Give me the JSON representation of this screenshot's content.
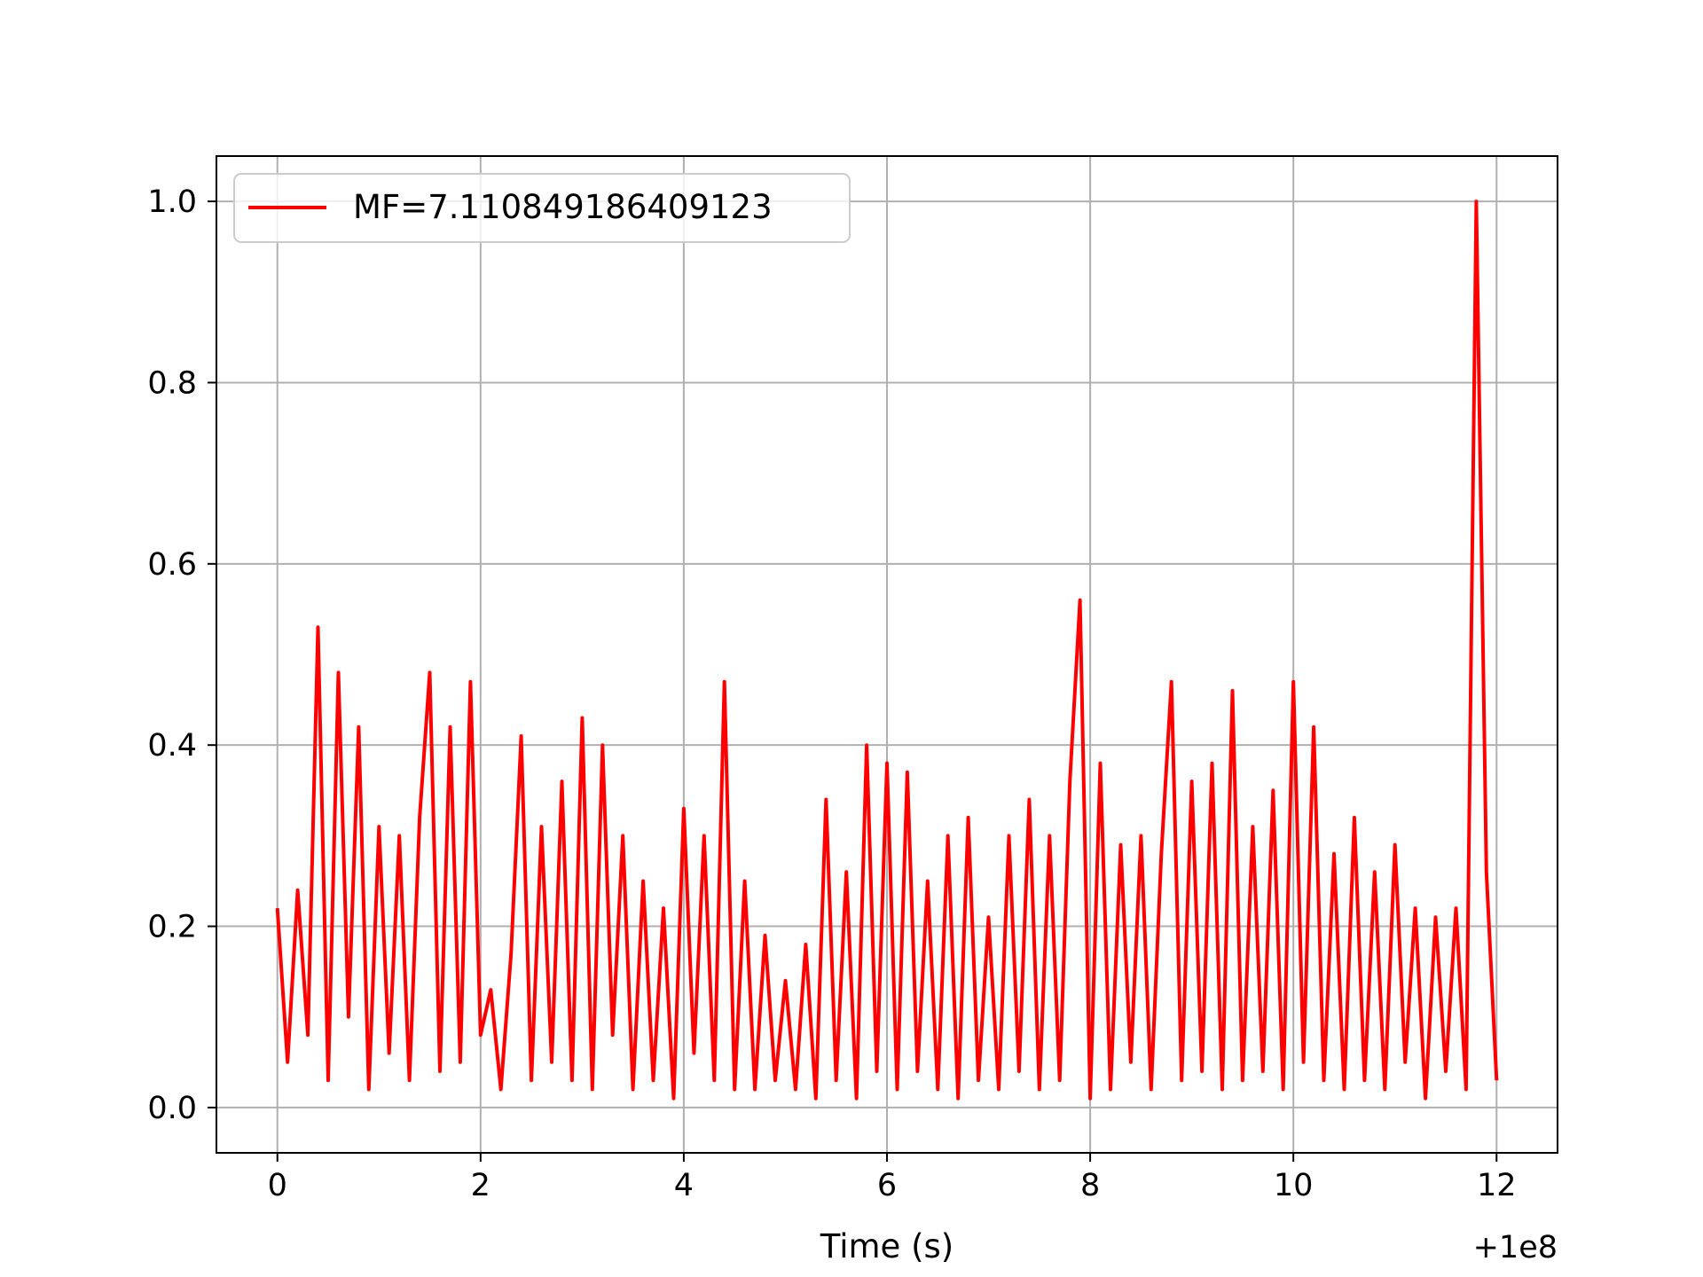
{
  "chart_data": {
    "type": "line",
    "title": "",
    "xlabel": "Time (s)",
    "ylabel": "",
    "x_offset_label": "+1e8",
    "xlim": [
      100000000.0,
      100000012.0
    ],
    "ylim": [
      0.0,
      1.0
    ],
    "x_ticks": [
      0,
      2,
      4,
      6,
      8,
      10,
      12
    ],
    "x_tick_labels": [
      "0",
      "2",
      "4",
      "6",
      "8",
      "10",
      "12"
    ],
    "y_ticks": [
      0.0,
      0.2,
      0.4,
      0.6,
      0.8,
      1.0
    ],
    "y_tick_labels": [
      "0.0",
      "0.2",
      "0.4",
      "0.6",
      "0.8",
      "1.0"
    ],
    "grid": true,
    "legend_position": "top-left",
    "series": [
      {
        "name": "MF=7.110849186409123",
        "color": "#ff0000",
        "x": [
          100000000.0,
          100000000.1,
          100000000.2,
          100000000.3,
          100000000.4,
          100000000.5,
          100000000.6,
          100000000.7,
          100000000.8,
          100000000.9,
          100000001.0,
          100000001.1,
          100000001.2,
          100000001.3,
          100000001.4,
          100000001.5,
          100000001.6,
          100000001.7,
          100000001.8,
          100000001.9,
          100000002.0,
          100000002.1,
          100000002.2,
          100000002.3,
          100000002.4,
          100000002.5,
          100000002.6,
          100000002.7,
          100000002.8,
          100000002.9,
          100000003.0,
          100000003.1,
          100000003.2,
          100000003.3,
          100000003.4,
          100000003.5,
          100000003.6,
          100000003.7,
          100000003.8,
          100000003.9,
          100000004.0,
          100000004.1,
          100000004.2,
          100000004.3,
          100000004.4,
          100000004.5,
          100000004.6,
          100000004.7,
          100000004.8,
          100000004.9,
          100000005.0,
          100000005.1,
          100000005.2,
          100000005.3,
          100000005.4,
          100000005.5,
          100000005.6,
          100000005.7,
          100000005.8,
          100000005.9,
          100000006.0,
          100000006.1,
          100000006.2,
          100000006.3,
          100000006.4,
          100000006.5,
          100000006.6,
          100000006.7,
          100000006.8,
          100000006.9,
          100000007.0,
          100000007.1,
          100000007.2,
          100000007.3,
          100000007.4,
          100000007.5,
          100000007.6,
          100000007.7,
          100000007.8,
          100000007.9,
          100000008.0,
          100000008.1,
          100000008.2,
          100000008.3,
          100000008.4,
          100000008.5,
          100000008.6,
          100000008.7,
          100000008.8,
          100000008.9,
          100000009.0,
          100000009.1,
          100000009.2,
          100000009.3,
          100000009.4,
          100000009.5,
          100000009.6,
          100000009.7,
          100000009.8,
          100000009.9,
          100000010.0,
          100000010.1,
          100000010.2,
          100000010.3,
          100000010.4,
          100000010.5,
          100000010.6,
          100000010.7,
          100000010.8,
          100000010.9,
          100000011.0,
          100000011.1,
          100000011.2,
          100000011.3,
          100000011.4,
          100000011.5,
          100000011.6,
          100000011.7,
          100000011.8,
          100000011.9,
          100000012.0
        ],
        "y": [
          0.22,
          0.05,
          0.24,
          0.08,
          0.53,
          0.03,
          0.48,
          0.1,
          0.42,
          0.02,
          0.31,
          0.06,
          0.3,
          0.03,
          0.32,
          0.48,
          0.04,
          0.42,
          0.05,
          0.47,
          0.08,
          0.13,
          0.02,
          0.17,
          0.41,
          0.03,
          0.31,
          0.05,
          0.36,
          0.03,
          0.43,
          0.02,
          0.4,
          0.08,
          0.3,
          0.02,
          0.25,
          0.03,
          0.22,
          0.01,
          0.33,
          0.06,
          0.3,
          0.03,
          0.47,
          0.02,
          0.25,
          0.02,
          0.19,
          0.03,
          0.14,
          0.02,
          0.18,
          0.01,
          0.34,
          0.03,
          0.26,
          0.01,
          0.4,
          0.04,
          0.38,
          0.02,
          0.37,
          0.04,
          0.25,
          0.02,
          0.3,
          0.01,
          0.32,
          0.03,
          0.21,
          0.02,
          0.3,
          0.04,
          0.34,
          0.02,
          0.3,
          0.03,
          0.36,
          0.56,
          0.01,
          0.38,
          0.02,
          0.29,
          0.05,
          0.3,
          0.02,
          0.28,
          0.47,
          0.03,
          0.36,
          0.04,
          0.38,
          0.02,
          0.46,
          0.03,
          0.31,
          0.04,
          0.35,
          0.02,
          0.47,
          0.05,
          0.42,
          0.03,
          0.28,
          0.02,
          0.32,
          0.03,
          0.26,
          0.02,
          0.29,
          0.05,
          0.22,
          0.01,
          0.21,
          0.04,
          0.22,
          0.02,
          1.0,
          0.26,
          0.03
        ]
      }
    ]
  }
}
